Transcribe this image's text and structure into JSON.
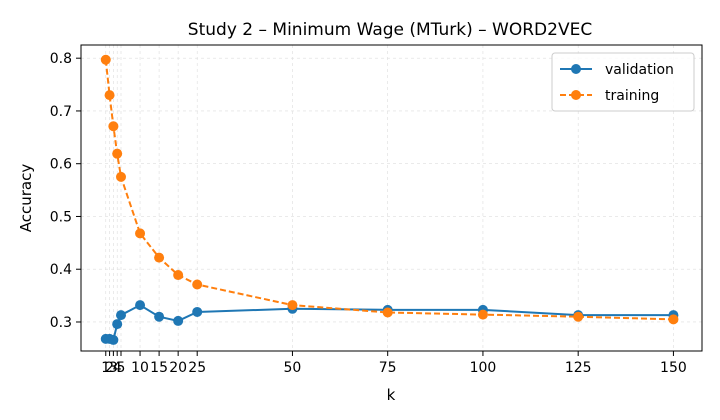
{
  "chart_data": {
    "type": "line",
    "title": "Study 2 – Minimum Wage (MTurk) – WORD2VEC",
    "xlabel": "k",
    "ylabel": "Accuracy",
    "xlim": [
      -5.5,
      157.5
    ],
    "ylim": [
      0.245,
      0.825
    ],
    "xticks": [
      1,
      2,
      3,
      4,
      5,
      10,
      15,
      20,
      25,
      50,
      75,
      100,
      125,
      150
    ],
    "xtick_labels": [
      "1",
      "2",
      "3",
      "4",
      "5",
      "10",
      "15",
      "20",
      "25",
      "50",
      "75",
      "100",
      "125",
      "150"
    ],
    "yticks": [
      0.3,
      0.4,
      0.5,
      0.6,
      0.7,
      0.8
    ],
    "ytick_labels": [
      "0.3",
      "0.4",
      "0.5",
      "0.6",
      "0.7",
      "0.8"
    ],
    "grid": true,
    "legend_position": "top-right",
    "x": [
      1,
      2,
      3,
      4,
      5,
      10,
      15,
      20,
      25,
      50,
      75,
      100,
      125,
      150
    ],
    "series": [
      {
        "name": "validation",
        "color": "#1f77b4",
        "linestyle": "solid",
        "marker": "circle",
        "values": [
          0.268,
          0.268,
          0.266,
          0.296,
          0.313,
          0.332,
          0.31,
          0.302,
          0.319,
          0.325,
          0.323,
          0.323,
          0.313,
          0.313
        ]
      },
      {
        "name": "training",
        "color": "#ff7f0e",
        "linestyle": "dashed",
        "marker": "circle",
        "values": [
          0.797,
          0.73,
          0.671,
          0.619,
          0.575,
          0.468,
          0.422,
          0.389,
          0.371,
          0.332,
          0.318,
          0.314,
          0.31,
          0.305
        ]
      }
    ]
  }
}
